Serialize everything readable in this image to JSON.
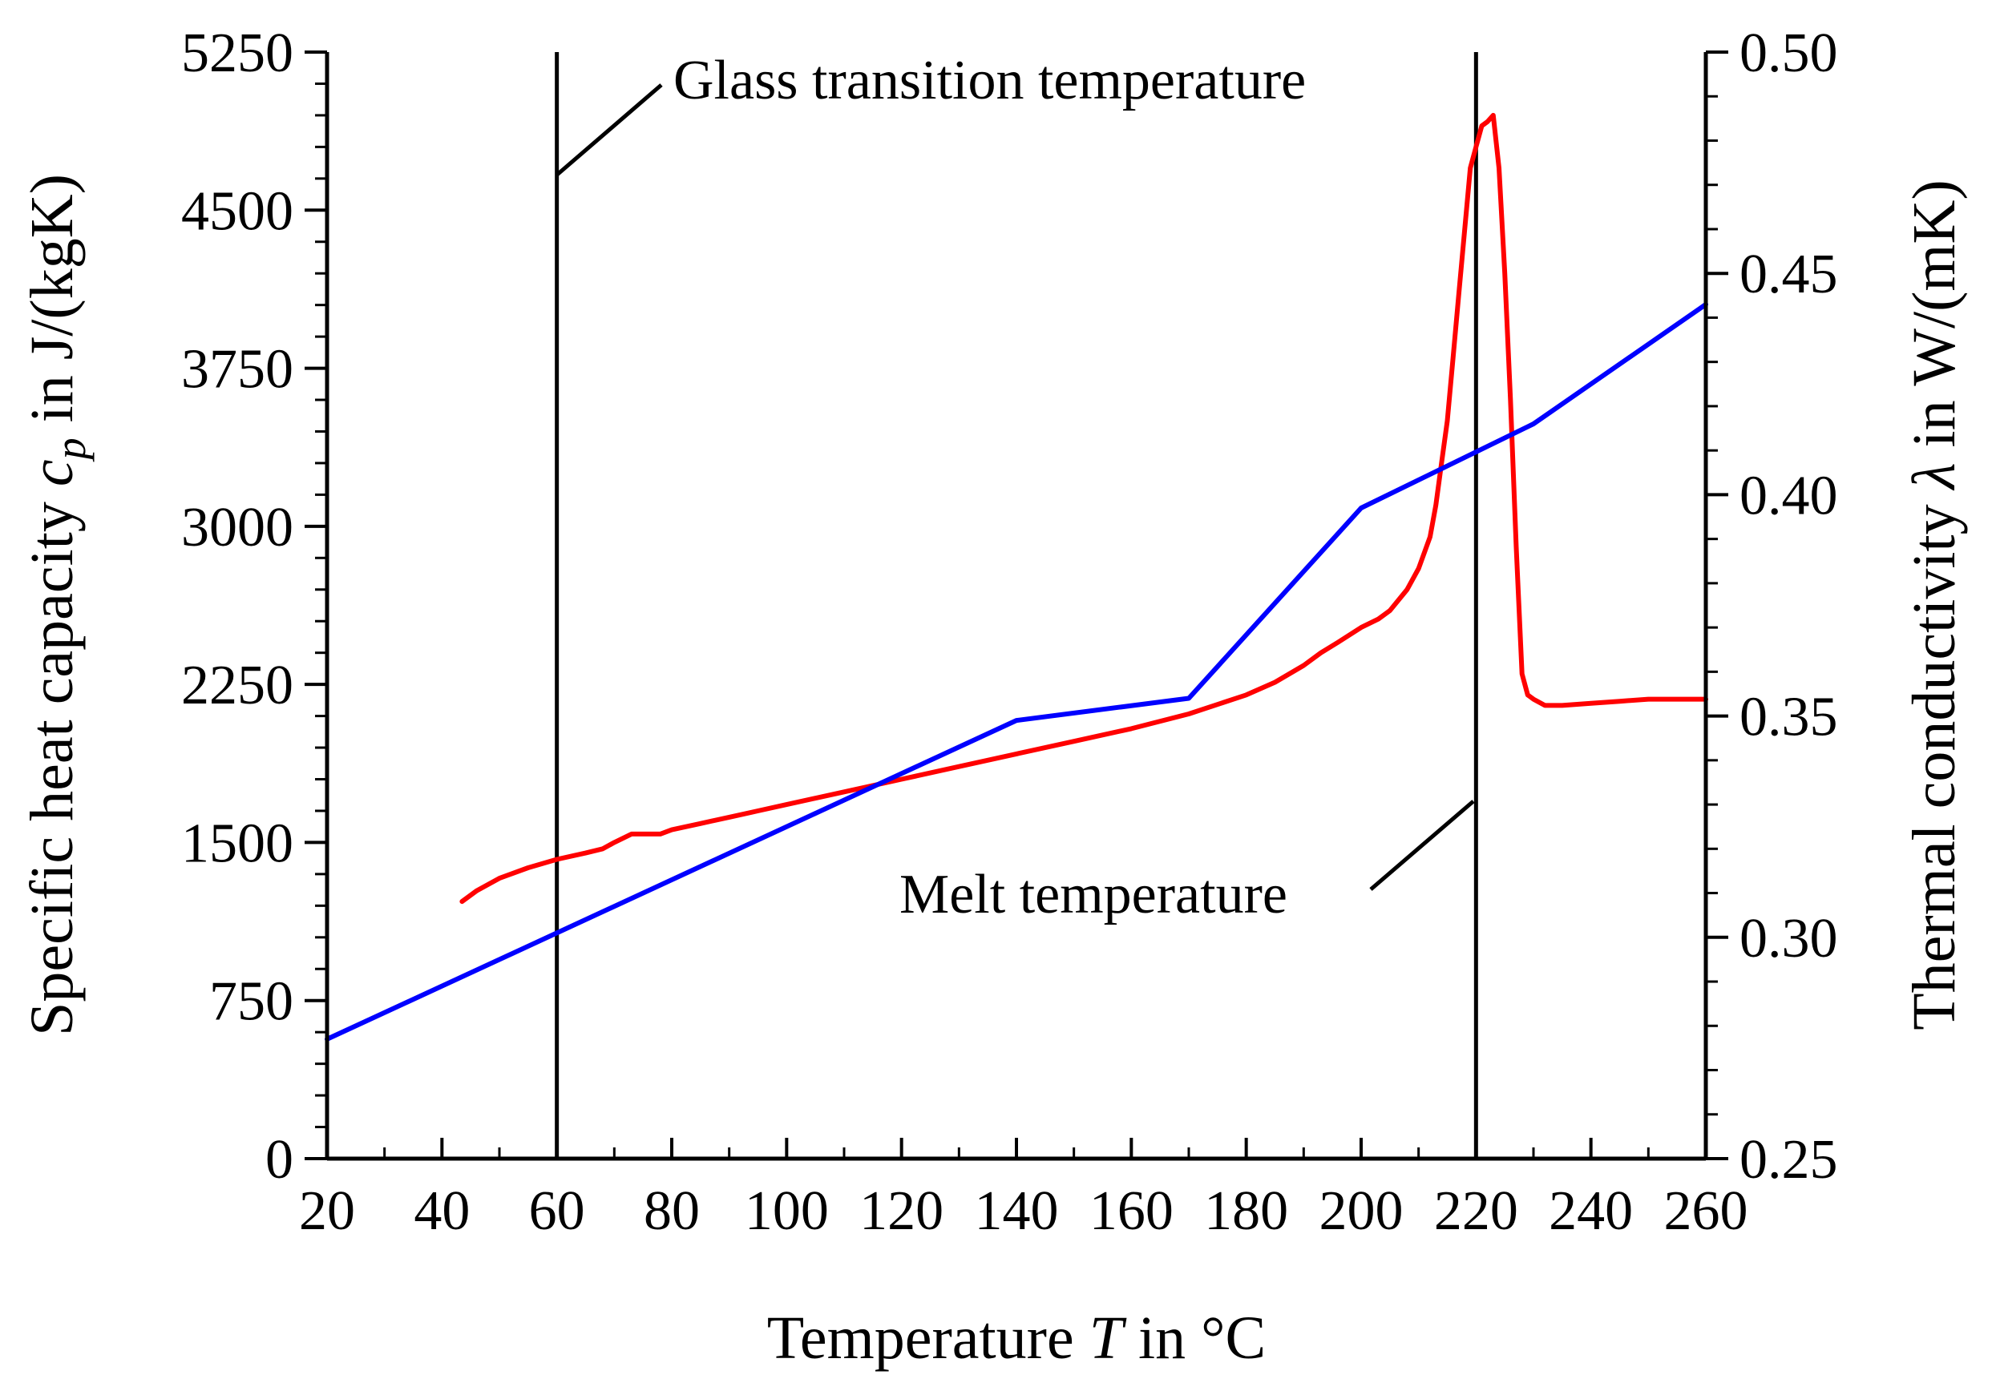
{
  "chart_data": {
    "type": "line",
    "title": "",
    "xlabel": {
      "prefix": "Temperature ",
      "var": "T",
      "suffix": " in °C"
    },
    "ylabel_left": {
      "prefix": "Specific heat capacity ",
      "var": "c",
      "sub": "p",
      "suffix": " in J/(kgK)"
    },
    "ylabel_right": {
      "prefix": "Thermal conductivity ",
      "var": "λ",
      "suffix": " in W/(mK)"
    },
    "xlim": [
      20,
      260
    ],
    "ylim_left": [
      0,
      5250
    ],
    "ylim_right": [
      0.25,
      0.5
    ],
    "x_ticks": [
      "20",
      "40",
      "60",
      "80",
      "100",
      "120",
      "140",
      "160",
      "180",
      "200",
      "220",
      "240",
      "260"
    ],
    "y_left_ticks": [
      "0",
      "750",
      "1500",
      "2250",
      "3000",
      "3750",
      "4500",
      "5250"
    ],
    "y_right_ticks": [
      "0.25",
      "0.30",
      "0.35",
      "0.40",
      "0.45",
      "0.50"
    ],
    "series": [
      {
        "name": "Specific heat capacity",
        "axis": "left",
        "color": "#ff0000",
        "x": [
          43.5,
          46,
          50,
          55,
          60,
          65,
          68,
          70,
          73,
          75,
          78,
          80,
          85,
          90,
          95,
          100,
          110,
          120,
          130,
          140,
          150,
          160,
          170,
          180,
          185,
          190,
          193,
          196,
          200,
          203,
          205,
          208,
          210,
          212,
          213,
          214,
          215,
          216,
          217,
          218,
          219,
          220,
          221,
          222,
          223,
          224,
          225,
          226,
          227,
          228,
          229,
          230,
          232,
          235,
          240,
          245,
          250,
          255,
          260
        ],
        "y": [
          1220,
          1270,
          1330,
          1380,
          1420,
          1450,
          1470,
          1500,
          1540,
          1540,
          1540,
          1560,
          1590,
          1620,
          1650,
          1680,
          1740,
          1800,
          1860,
          1920,
          1980,
          2040,
          2110,
          2200,
          2260,
          2340,
          2400,
          2450,
          2520,
          2560,
          2600,
          2700,
          2800,
          2950,
          3100,
          3300,
          3500,
          3800,
          4100,
          4400,
          4700,
          4800,
          4900,
          4920,
          4950,
          4700,
          4200,
          3600,
          2900,
          2300,
          2200,
          2180,
          2150,
          2150,
          2160,
          2170,
          2180,
          2180,
          2180
        ]
      },
      {
        "name": "Thermal conductivity",
        "axis": "right",
        "color": "#0000ff",
        "x": [
          20,
          140,
          170,
          200,
          230,
          260
        ],
        "y": [
          0.277,
          0.349,
          0.354,
          0.397,
          0.416,
          0.443
        ]
      }
    ],
    "vlines": [
      {
        "x": 60,
        "label": "Glass transition temperature",
        "color": "#000000"
      },
      {
        "x": 220,
        "label": "Melt temperature",
        "color": "#000000"
      }
    ],
    "grid": false,
    "legend": "none"
  }
}
